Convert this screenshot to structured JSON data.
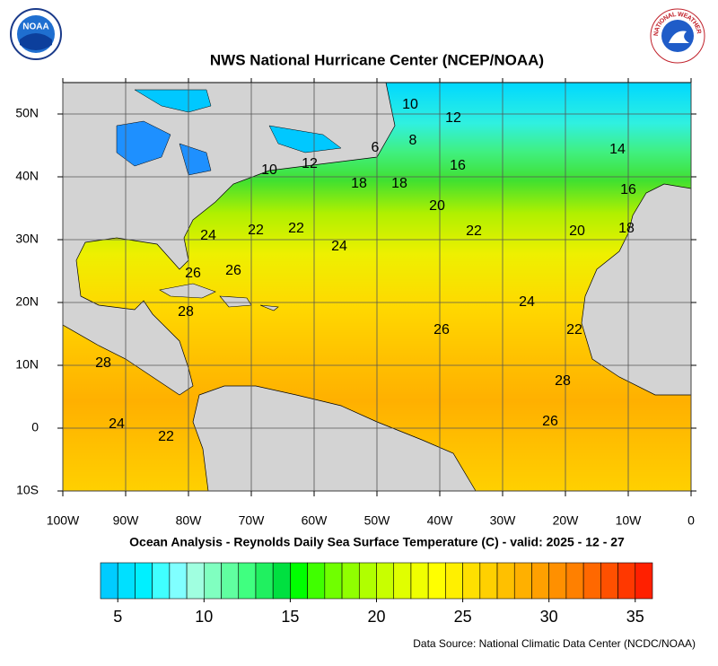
{
  "map": {
    "title": "NWS National Hurricane Center (NCEP/NOAA)",
    "subtitle": "Ocean Analysis - Reynolds Daily Sea Surface Temperature (C) - valid: 2025 - 12 - 27",
    "source": "Data Source: National Climatic Data Center (NCDC/NOAA)",
    "logos": [
      "NOAA",
      "NATIONAL WEATHER SERVICE"
    ],
    "xlim": [
      -100,
      0
    ],
    "ylim": [
      -10,
      55
    ],
    "xticks": [
      {
        "value": -100,
        "label": "100W"
      },
      {
        "value": -90,
        "label": "90W"
      },
      {
        "value": -80,
        "label": "80W"
      },
      {
        "value": -70,
        "label": "70W"
      },
      {
        "value": -60,
        "label": "60W"
      },
      {
        "value": -50,
        "label": "50W"
      },
      {
        "value": -40,
        "label": "40W"
      },
      {
        "value": -30,
        "label": "30W"
      },
      {
        "value": -20,
        "label": "20W"
      },
      {
        "value": -10,
        "label": "10W"
      },
      0
    ],
    "yticks": [
      {
        "value": 50,
        "label": "50N"
      },
      {
        "value": 40,
        "label": "40N"
      },
      {
        "value": 30,
        "label": "30N"
      },
      {
        "value": 20,
        "label": "20N"
      },
      {
        "value": 10,
        "label": "10N"
      },
      0,
      {
        "value": -10,
        "label": "10S"
      }
    ],
    "grid": true,
    "contour_labels": [
      "10",
      "12",
      "6",
      "8",
      "10",
      "12",
      "16",
      "14",
      "18",
      "18",
      "20",
      "22",
      "22",
      "24",
      "24",
      "22",
      "20",
      "18",
      "16",
      "26",
      "26",
      "28",
      "24",
      "26",
      "22",
      "28",
      "28",
      "26",
      "24",
      "22"
    ],
    "colorbar": {
      "lim": [
        4,
        36
      ],
      "ticks": [
        5,
        10,
        15,
        20,
        25,
        30,
        35
      ],
      "colors": [
        "#00ccff",
        "#00e0ff",
        "#00f0ff",
        "#40ffff",
        "#80ffff",
        "#a0ffe0",
        "#80ffc0",
        "#60ffa0",
        "#40ff80",
        "#20f060",
        "#00e040",
        "#00ff00",
        "#40ff00",
        "#70ff00",
        "#90ff00",
        "#b0ff00",
        "#c8ff00",
        "#e0ff00",
        "#f0ff00",
        "#ffff00",
        "#fff000",
        "#ffe000",
        "#ffd000",
        "#ffc000",
        "#ffb000",
        "#ffa000",
        "#ff9000",
        "#ff8000",
        "#ff6800",
        "#ff5000",
        "#ff3800",
        "#ff2000"
      ]
    }
  }
}
